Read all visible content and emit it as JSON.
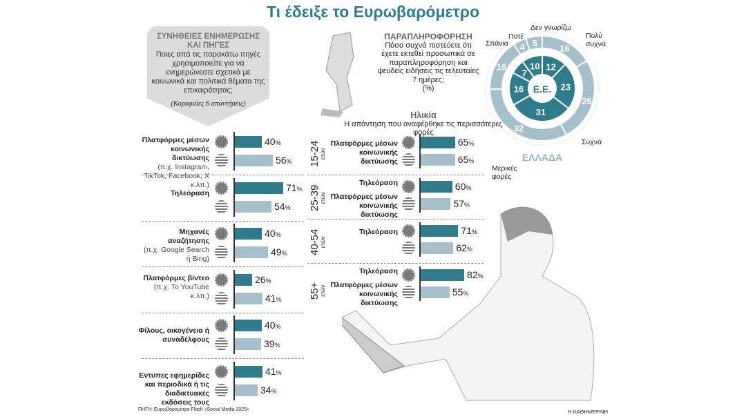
{
  "title": "Τι έδειξε το Ευρωβαρόμετρο",
  "colors": {
    "eu": "#2e7b8c",
    "gr": "#a5bfcc",
    "title": "#2d7c90"
  },
  "sources_panel": {
    "heading_line1": "ΣΥΝΗΘΕΙΕΣ ΕΝΗΜΕΡΩΣΗΣ",
    "heading_line2": "ΚΑΙ ΠΗΓΕΣ",
    "question": "Ποιες από τις παρακάτω πηγές χρησιμοποιείτε για να ενημερώνεστε σχετικά με κοινωνικά και πολιτικά θέματα της επικαιρότητας;",
    "note": "(Κορυφαίες 6 απαντήσεις)"
  },
  "chart_data": [
    {
      "type": "bar",
      "title": "Συνήθειες ενημέρωσης και πηγές",
      "unit": "%",
      "series_names": [
        "Ε.Ε.",
        "Ελλάδα"
      ],
      "rows": [
        {
          "label": "Πλατφόρμες μέσων κοινωνικής δικτύωσης",
          "sublabel": "(π.χ. Instagram, TikTok, Facebook, X κ.λπ.)",
          "eu": 40,
          "gr": 56
        },
        {
          "label": "Τηλεόραση",
          "sublabel": "",
          "eu": 71,
          "gr": 54
        },
        {
          "label": "Μηχανές αναζήτησης",
          "sublabel": "(π.χ. Google Search ή Bing)",
          "eu": 40,
          "gr": 49
        },
        {
          "label": "Πλατφόρμες βίντεο",
          "sublabel": "(π.χ. Το YouTube κ.λπ.)",
          "eu": 26,
          "gr": 41
        },
        {
          "label": "Φίλους, οικογένεια ή συναδέλφους",
          "sublabel": "",
          "eu": 40,
          "gr": 39
        },
        {
          "label": "Εντυπες εφημερίδες και περιοδικά ή τις διαδικτυακές εκδόσεις τους",
          "sublabel": "",
          "eu": 41,
          "gr": 34
        }
      ]
    },
    {
      "type": "bar",
      "title": "Ηλικία",
      "subtitle": "Η απάντηση που αναφέρθηκε τις περισσότερες φορές",
      "unit": "%",
      "years_label": "ετών",
      "rows": [
        {
          "age": "15-24",
          "eu_label": "Πλατφόρμες μέσων κοινωνικής δικτύωσης",
          "gr_label": "",
          "eu": 65,
          "gr": 65
        },
        {
          "age": "25-39",
          "eu_label": "Τηλεόραση",
          "gr_label": "Πλατφόρμες μέσων κοινωνικής δικτύωσης",
          "eu": 60,
          "gr": 57
        },
        {
          "age": "40-54",
          "eu_label": "Τηλεόραση",
          "gr_label": "",
          "eu": 71,
          "gr": 62
        },
        {
          "age": "55+",
          "eu_label": "Τηλεόραση",
          "gr_label": "Πλατφόρμες μέσων κοινωνικής δικτύωσης",
          "eu": 82,
          "gr": 55
        }
      ]
    },
    {
      "type": "pie",
      "title": "ΠΑΡΑΠΛΗΡΟΦΟΡΗΣΗ",
      "question": "Πόσο συχνά πιστεύετε ότι έχετε εκτεθεί προσωπικά σε παραπληροφόρηση και ψευδείς ειδήσεις τις τελευταίες 7 ημέρες;",
      "unit": "(%)",
      "center_label": "Ε.Ε.",
      "outer_label": "ΕΛΛΑΔΑ",
      "categories": [
        "Πολύ συχνά",
        "Συχνά",
        "Μερικές φορές",
        "Σπάνια",
        "Ποτέ",
        "Δεν γνωρίζω"
      ],
      "series": [
        {
          "name": "Ε.Ε.",
          "values": [
            12,
            23,
            31,
            16,
            7,
            10
          ]
        },
        {
          "name": "Ελλάδα",
          "values": [
            16,
            26,
            32,
            16,
            4,
            5
          ]
        }
      ]
    }
  ],
  "footer": {
    "source": "ΠΗΓΗ: Ευρωβαρόμετρο Flash «Social Media 2025»",
    "credit": "Η ΚΑΘΗΜΕΡΙΝΗ"
  }
}
